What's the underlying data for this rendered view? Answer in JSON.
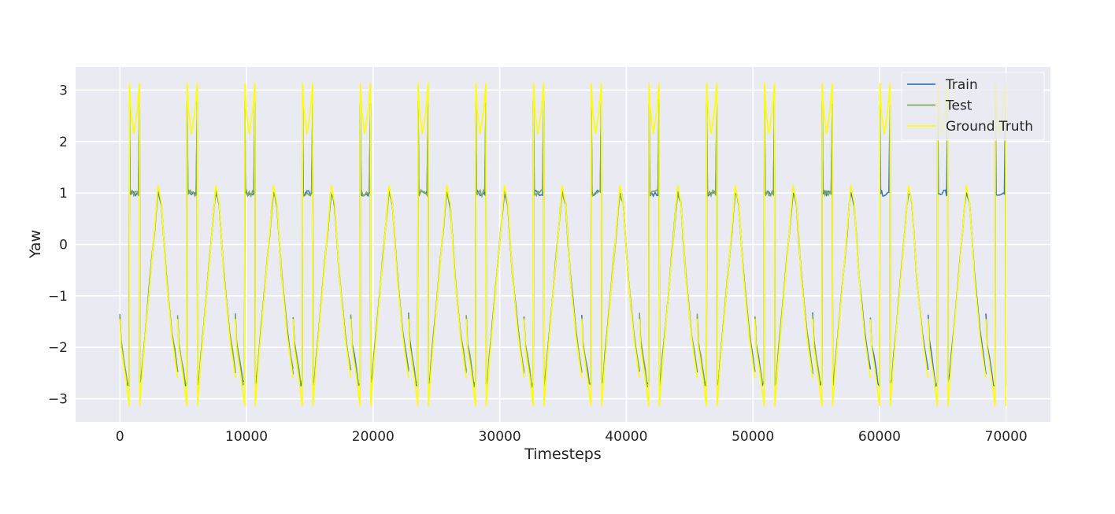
{
  "chart_data": {
    "type": "line",
    "xlabel": "Timesteps",
    "ylabel": "Yaw",
    "xlim": [
      -3500,
      73500
    ],
    "ylim": [
      -3.45,
      3.45
    ],
    "x_ticks": [
      0,
      10000,
      20000,
      30000,
      40000,
      50000,
      60000,
      70000
    ],
    "x_tick_labels": [
      "0",
      "10000",
      "20000",
      "30000",
      "40000",
      "50000",
      "60000",
      "70000"
    ],
    "y_ticks": [
      3,
      2,
      1,
      0,
      -1,
      -2,
      -3
    ],
    "y_tick_labels": [
      "3",
      "2",
      "1",
      "0",
      "−1",
      "−2",
      "−3"
    ],
    "grid": true,
    "legend_position": "top-right",
    "period": 4560,
    "period_key_points": [
      {
        "phase": 0.0,
        "yaw": -1.45
      },
      {
        "phase": 0.02,
        "yaw": -2.0
      },
      {
        "phase": 0.1,
        "yaw": -2.6
      },
      {
        "phase": 0.16,
        "yaw": -3.14
      },
      {
        "phase": 0.165,
        "yaw": 3.14
      },
      {
        "phase": 0.19,
        "yaw": 2.6
      },
      {
        "phase": 0.24,
        "yaw": 2.15
      },
      {
        "phase": 0.3,
        "yaw": 2.6
      },
      {
        "phase": 0.34,
        "yaw": 3.14
      },
      {
        "phase": 0.345,
        "yaw": -3.14
      },
      {
        "phase": 0.4,
        "yaw": -2.3
      },
      {
        "phase": 0.5,
        "yaw": -1.0
      },
      {
        "phase": 0.6,
        "yaw": 0.3
      },
      {
        "phase": 0.66,
        "yaw": 1.15
      },
      {
        "phase": 0.72,
        "yaw": 0.8
      },
      {
        "phase": 0.8,
        "yaw": -0.6
      },
      {
        "phase": 0.9,
        "yaw": -1.8
      },
      {
        "phase": 1.0,
        "yaw": -2.6
      }
    ],
    "series": [
      {
        "name": "Train",
        "color": "#3b75c4",
        "x_range": [
          0,
          70000
        ]
      },
      {
        "name": "Test",
        "color": "#7fa85a",
        "x_range": [
          0,
          57000
        ]
      },
      {
        "name": "Ground Truth",
        "color": "#ffff00",
        "x_range": [
          0,
          70000
        ]
      }
    ]
  }
}
